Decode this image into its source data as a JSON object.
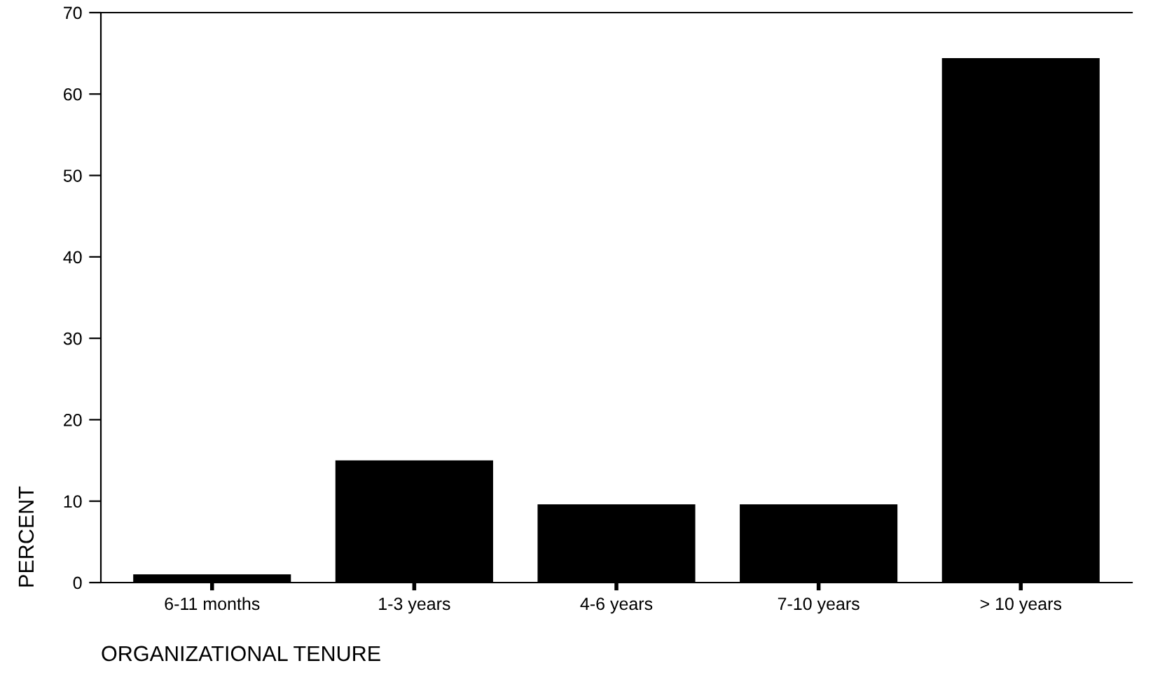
{
  "chart_data": {
    "type": "bar",
    "xlabel": "ORGANIZATIONAL TENURE",
    "ylabel": "PERCENT",
    "categories": [
      "6-11 months",
      "1-3 years",
      "4-6 years",
      "7-10 years",
      "> 10 years"
    ],
    "values": [
      1.0,
      15.0,
      9.6,
      9.6,
      64.4
    ],
    "color": "#000000",
    "ylim": [
      0,
      70
    ],
    "yticks": [
      0,
      10,
      20,
      30,
      40,
      50,
      60,
      70
    ],
    "grid": false
  }
}
